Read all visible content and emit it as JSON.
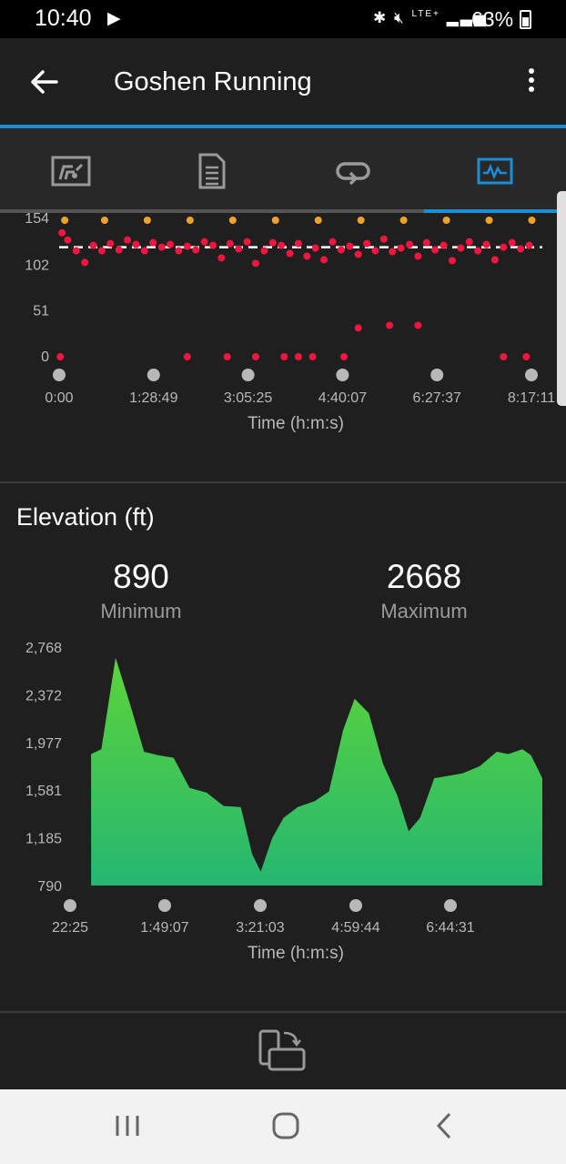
{
  "status_bar": {
    "time": "10:40",
    "battery_text": "63%",
    "icons": [
      "play-icon",
      "bluetooth-icon",
      "mute-icon",
      "lte-icon",
      "signal-icon",
      "battery-icon"
    ],
    "network_label": "LTE+"
  },
  "app_bar": {
    "title": "Goshen Running",
    "accent_color": "#1a8fd6"
  },
  "tabs": [
    {
      "name": "overview",
      "icon": "speedometer-card-icon",
      "selected": false
    },
    {
      "name": "stats",
      "icon": "document-list-icon",
      "selected": false
    },
    {
      "name": "laps",
      "icon": "loop-icon",
      "selected": false
    },
    {
      "name": "charts",
      "icon": "activity-chart-icon",
      "selected": true
    }
  ],
  "heart_rate_chart": {
    "y_ticks": [
      "154",
      "102",
      "51",
      "0"
    ],
    "x_ticks": [
      "0:00",
      "1:28:49",
      "3:05:25",
      "4:40:07",
      "6:27:37",
      "8:17:11"
    ],
    "x_title": "Time (h:m:s)",
    "average_line_color": "#ffffff",
    "point_colors": {
      "primary": "#f0163f",
      "upper_zone": "#f2a12c"
    }
  },
  "elevation": {
    "title": "Elevation (ft)",
    "minimum_value": "890",
    "minimum_label": "Minimum",
    "maximum_value": "2668",
    "maximum_label": "Maximum",
    "y_ticks": [
      "2,768",
      "2,372",
      "1,977",
      "1,581",
      "1,185",
      "790"
    ],
    "x_ticks": [
      "22:25",
      "1:49:07",
      "3:21:03",
      "4:59:44",
      "6:44:31"
    ],
    "x_title": "Time (h:m:s)",
    "fill_top_color": "#5cd43a",
    "fill_bottom_color": "#25b771"
  },
  "chart_data": [
    {
      "type": "scatter",
      "title": "",
      "xlabel": "Time (h:m:s)",
      "ylabel": "",
      "y_ticks": [
        0,
        51,
        102,
        154
      ],
      "x_tick_labels": [
        "0:00",
        "1:28:49",
        "3:05:25",
        "4:40:07",
        "6:27:37",
        "8:17:11"
      ],
      "x_range_hours": [
        0,
        8.29
      ],
      "series": [
        {
          "x_hours": [
            0.05,
            0.15,
            0.3,
            0.45,
            0.6,
            0.75,
            0.9,
            1.05,
            1.2,
            1.35,
            1.5,
            1.65,
            1.8,
            1.95,
            2.1,
            2.25,
            2.4,
            2.55,
            2.7,
            2.85,
            3.0,
            3.15,
            3.3,
            3.45,
            3.6,
            3.75,
            3.9,
            4.05,
            4.2,
            4.35,
            4.5,
            4.65,
            4.8,
            4.95,
            5.1,
            5.25,
            5.4,
            5.55,
            5.7,
            5.85,
            6.0,
            6.15,
            6.3,
            6.45,
            6.6,
            6.75,
            6.9,
            7.05,
            7.2,
            7.35,
            7.5,
            7.65,
            7.8,
            7.95,
            8.1,
            8.25
          ],
          "y": [
            138,
            130,
            118,
            105,
            124,
            118,
            126,
            119,
            130,
            125,
            118,
            127,
            122,
            125,
            118,
            123,
            119,
            128,
            124,
            110,
            126,
            120,
            128,
            104,
            118,
            127,
            124,
            115,
            126,
            112,
            121,
            108,
            128,
            119,
            123,
            114,
            126,
            118,
            131,
            117,
            121,
            125,
            112,
            127,
            119,
            124,
            107,
            121,
            128,
            118,
            125,
            108,
            122,
            127,
            120,
            124
          ]
        },
        {
          "x_hours": [
            5.25,
            5.8,
            6.3
          ],
          "y": [
            32,
            35,
            35
          ]
        },
        {
          "x_hours": [
            0.02,
            2.25,
            2.95,
            3.45,
            3.95,
            4.2,
            4.45,
            5.0,
            7.8,
            8.2
          ],
          "y": [
            0,
            0,
            0,
            0,
            0,
            0,
            0,
            0,
            0,
            0
          ]
        }
      ]
    },
    {
      "type": "area",
      "title": "Elevation (ft)",
      "xlabel": "Time (h:m:s)",
      "ylabel": "",
      "ylim": [
        790,
        2768
      ],
      "y_ticks": [
        790,
        1185,
        1581,
        1977,
        2372,
        2768
      ],
      "x_tick_labels": [
        "22:25",
        "1:49:07",
        "3:21:03",
        "4:59:44",
        "6:44:31"
      ],
      "x_hours": [
        0.37,
        0.55,
        0.8,
        1.05,
        1.3,
        1.55,
        1.82,
        2.1,
        2.4,
        2.7,
        3.0,
        3.2,
        3.35,
        3.55,
        3.75,
        4.0,
        4.3,
        4.55,
        4.8,
        5.0,
        5.25,
        5.5,
        5.75,
        5.95,
        6.15,
        6.4,
        6.65,
        6.9,
        7.2,
        7.5,
        7.7,
        7.95,
        8.1,
        8.3
      ],
      "y": [
        1880,
        1920,
        2680,
        2300,
        1900,
        1870,
        1850,
        1600,
        1560,
        1450,
        1440,
        1050,
        905,
        1180,
        1350,
        1440,
        1490,
        1570,
        2080,
        2340,
        2220,
        1800,
        1540,
        1240,
        1350,
        1680,
        1700,
        1720,
        1780,
        1900,
        1880,
        1920,
        1870,
        1680
      ]
    }
  ]
}
